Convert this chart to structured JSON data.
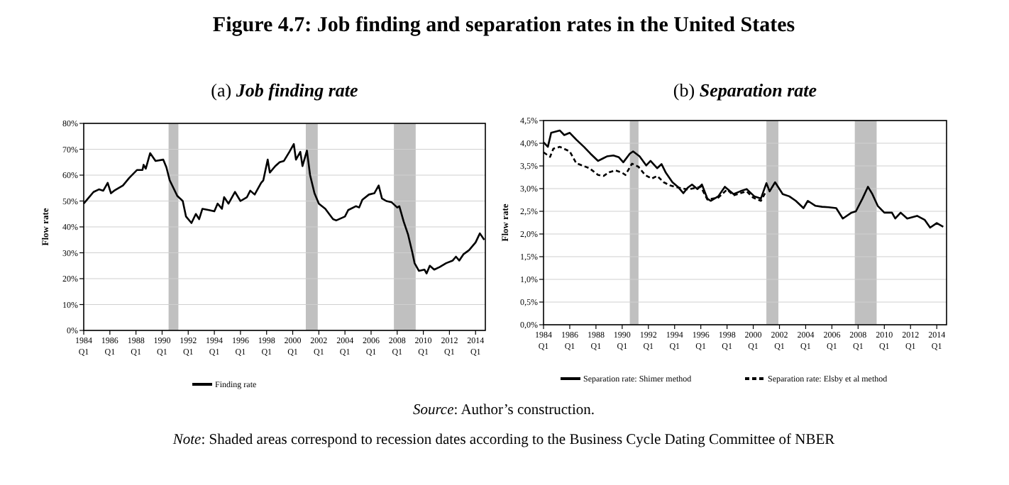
{
  "chart_data": [
    {
      "type": "line",
      "title": "(a) Job finding rate",
      "ylabel": "Flow rate",
      "xlim": [
        "1984-01",
        "2014-10"
      ],
      "ylim": [
        0,
        80
      ],
      "xticks": [
        {
          "value": "1984-01",
          "label": "1984 Q1"
        },
        {
          "value": "1986-01",
          "label": "1986 Q1"
        },
        {
          "value": "1988-01",
          "label": "1988 Q1"
        },
        {
          "value": "1990-01",
          "label": "1990 Q1"
        },
        {
          "value": "1992-01",
          "label": "1992 Q1"
        },
        {
          "value": "1994-01",
          "label": "1994 Q1"
        },
        {
          "value": "1996-01",
          "label": "1996 Q1"
        },
        {
          "value": "1998-01",
          "label": "1998 Q1"
        },
        {
          "value": "2000-01",
          "label": "2000 Q1"
        },
        {
          "value": "2002-01",
          "label": "2002 Q1"
        },
        {
          "value": "2004-01",
          "label": "2004 Q1"
        },
        {
          "value": "2006-01",
          "label": "2006 Q1"
        },
        {
          "value": "2008-01",
          "label": "2008 Q1"
        },
        {
          "value": "2010-01",
          "label": "2010 Q1"
        },
        {
          "value": "2012-01",
          "label": "2012 Q1"
        },
        {
          "value": "2014-01",
          "label": "2014 Q1"
        }
      ],
      "yticks": [
        {
          "value": 0,
          "label": "0%"
        },
        {
          "value": 10,
          "label": "10%"
        },
        {
          "value": 20,
          "label": "20%"
        },
        {
          "value": 30,
          "label": "30%"
        },
        {
          "value": 40,
          "label": "40%"
        },
        {
          "value": 50,
          "label": "50%"
        },
        {
          "value": 60,
          "label": "60%"
        },
        {
          "value": 70,
          "label": "70%"
        },
        {
          "value": 80,
          "label": "80%"
        }
      ],
      "grid": "y",
      "legend": "bottom",
      "bands": [
        {
          "axis": "x",
          "from": "1990-07",
          "to": "1991-04",
          "color": "#c0c0c0"
        },
        {
          "axis": "x",
          "from": "2001-01",
          "to": "2001-12",
          "color": "#c0c0c0"
        },
        {
          "axis": "x",
          "from": "2007-10",
          "to": "2009-06",
          "color": "#c0c0c0"
        }
      ],
      "series": [
        {
          "name": "Finding rate",
          "color": "#000000",
          "line_style": "solid",
          "x": [
            "1984-01",
            "1984-05",
            "1984-10",
            "1985-03",
            "1985-07",
            "1985-11",
            "1986-02",
            "1986-05",
            "1987-01",
            "1987-07",
            "1988-02",
            "1988-07",
            "1988-08",
            "1988-10",
            "1989-02",
            "1989-07",
            "1990-02",
            "1990-05",
            "1990-08",
            "1991-03",
            "1991-08",
            "1991-11",
            "1992-04",
            "1992-08",
            "1992-11",
            "1993-02",
            "1993-08",
            "1994-01",
            "1994-04",
            "1994-08",
            "1994-10",
            "1995-02",
            "1995-08",
            "1996-01",
            "1996-07",
            "1996-10",
            "1997-02",
            "1997-08",
            "1997-10",
            "1998-02",
            "1998-04",
            "1998-09",
            "1999-01",
            "1999-05",
            "1999-10",
            "2000-02",
            "2000-04",
            "2000-08",
            "2000-10",
            "2001-02",
            "2001-05",
            "2001-09",
            "2002-01",
            "2002-07",
            "2003-02",
            "2003-05",
            "2004-01",
            "2004-04",
            "2004-11",
            "2005-02",
            "2005-05",
            "2005-11",
            "2006-04",
            "2006-08",
            "2006-11",
            "2007-03",
            "2007-08",
            "2008-01",
            "2008-03",
            "2008-07",
            "2008-11",
            "2009-03",
            "2009-05",
            "2009-09",
            "2010-02",
            "2010-04",
            "2010-07",
            "2010-11",
            "2011-04",
            "2011-10",
            "2012-04",
            "2012-07",
            "2012-10",
            "2013-02",
            "2013-07",
            "2014-01",
            "2014-05",
            "2014-09"
          ],
          "values": [
            49,
            51,
            53.5,
            54.5,
            54,
            57,
            53,
            54,
            56,
            59,
            62,
            62,
            64,
            62.5,
            68.5,
            65.5,
            66,
            63,
            58,
            52,
            50,
            44,
            41.5,
            45,
            43,
            47,
            46.5,
            46,
            49,
            47,
            51.5,
            49,
            53.5,
            50,
            51.5,
            54,
            52.5,
            57,
            58,
            66,
            61,
            63.5,
            65,
            65.5,
            69,
            72,
            66,
            69,
            63.5,
            69.5,
            60,
            53,
            49,
            47,
            43,
            42.5,
            44,
            46.5,
            48,
            47.5,
            50.5,
            52.5,
            53,
            56,
            51,
            50,
            49.5,
            47.5,
            48,
            42,
            37,
            30,
            26,
            23,
            23.5,
            22,
            25,
            23.5,
            24.5,
            26,
            27,
            28.5,
            27,
            29.5,
            31,
            34,
            37.5,
            35
          ]
        }
      ]
    },
    {
      "type": "line",
      "title": "(b) Separation rate",
      "ylabel": "Flow rate",
      "xlim": [
        "1984-01",
        "2014-10"
      ],
      "ylim": [
        0,
        4.5
      ],
      "xticks": [
        {
          "value": "1984-01",
          "label": "1984 Q1"
        },
        {
          "value": "1986-01",
          "label": "1986 Q1"
        },
        {
          "value": "1988-01",
          "label": "1988 Q1"
        },
        {
          "value": "1990-01",
          "label": "1990 Q1"
        },
        {
          "value": "1992-01",
          "label": "1992 Q1"
        },
        {
          "value": "1994-01",
          "label": "1994 Q1"
        },
        {
          "value": "1996-01",
          "label": "1996 Q1"
        },
        {
          "value": "1998-01",
          "label": "1998 Q1"
        },
        {
          "value": "2000-01",
          "label": "2000 Q1"
        },
        {
          "value": "2002-01",
          "label": "2002 Q1"
        },
        {
          "value": "2004-01",
          "label": "2004 Q1"
        },
        {
          "value": "2006-01",
          "label": "2006 Q1"
        },
        {
          "value": "2008-01",
          "label": "2008 Q1"
        },
        {
          "value": "2010-01",
          "label": "2010 Q1"
        },
        {
          "value": "2012-01",
          "label": "2012 Q1"
        },
        {
          "value": "2014-01",
          "label": "2014 Q1"
        }
      ],
      "yticks": [
        {
          "value": 0,
          "label": "0,0%"
        },
        {
          "value": 0.5,
          "label": "0,5%"
        },
        {
          "value": 1,
          "label": "1,0%"
        },
        {
          "value": 1.5,
          "label": "1,5%"
        },
        {
          "value": 2,
          "label": "2,0%"
        },
        {
          "value": 2.5,
          "label": "2,5%"
        },
        {
          "value": 3,
          "label": "3,0%"
        },
        {
          "value": 3.5,
          "label": "3,5%"
        },
        {
          "value": 4,
          "label": "4,0%"
        },
        {
          "value": 4.5,
          "label": "4,5%"
        }
      ],
      "grid": "y",
      "legend": "bottom",
      "bands": [
        {
          "axis": "x",
          "from": "1990-08",
          "to": "1991-04",
          "color": "#c0c0c0"
        },
        {
          "axis": "x",
          "from": "2001-01",
          "to": "2001-12",
          "color": "#c0c0c0"
        },
        {
          "axis": "x",
          "from": "2007-10",
          "to": "2009-06",
          "color": "#c0c0c0"
        }
      ],
      "series": [
        {
          "name": "Separation rate: Shimer method",
          "color": "#000000",
          "line_style": "solid",
          "x": [
            "1984-01",
            "1984-05",
            "1984-08",
            "1985-04",
            "1985-08",
            "1986-01",
            "1986-07",
            "1987-02",
            "1987-08",
            "1988-03",
            "1988-07",
            "1988-11",
            "1989-05",
            "1989-10",
            "1990-02",
            "1990-08",
            "1990-11",
            "1991-05",
            "1991-11",
            "1992-03",
            "1992-09",
            "1993-01",
            "1993-05",
            "1993-11",
            "1994-04",
            "1994-09",
            "1995-01",
            "1995-05",
            "1995-10",
            "1996-02",
            "1996-07",
            "1996-10",
            "1997-05",
            "1997-11",
            "1998-07",
            "1999-01",
            "1999-07",
            "2000-02",
            "2000-08",
            "2001-01",
            "2001-04",
            "2001-09",
            "2002-04",
            "2002-10",
            "2003-04",
            "2003-11",
            "2004-03",
            "2004-10",
            "2005-04",
            "2005-10",
            "2006-05",
            "2006-11",
            "2007-07",
            "2007-11",
            "2008-05",
            "2008-10",
            "2009-02",
            "2009-07",
            "2010-01",
            "2010-08",
            "2010-11",
            "2011-04",
            "2011-10",
            "2012-07",
            "2013-02",
            "2013-07",
            "2014-01",
            "2014-07"
          ],
          "values": [
            4.02,
            3.92,
            4.23,
            4.28,
            4.18,
            4.23,
            4.08,
            3.92,
            3.77,
            3.61,
            3.66,
            3.71,
            3.73,
            3.69,
            3.58,
            3.77,
            3.82,
            3.71,
            3.51,
            3.61,
            3.45,
            3.54,
            3.35,
            3.14,
            3.04,
            2.9,
            3.02,
            3.09,
            2.99,
            3.09,
            2.78,
            2.73,
            2.83,
            3.04,
            2.88,
            2.94,
            2.99,
            2.83,
            2.78,
            3.12,
            2.94,
            3.14,
            2.88,
            2.83,
            2.73,
            2.57,
            2.73,
            2.62,
            2.6,
            2.59,
            2.57,
            2.34,
            2.47,
            2.5,
            2.78,
            3.04,
            2.88,
            2.62,
            2.47,
            2.47,
            2.34,
            2.47,
            2.34,
            2.4,
            2.31,
            2.14,
            2.24,
            2.16
          ]
        },
        {
          "name": "Separation rate: Elsby et al method",
          "color": "#000000",
          "line_style": "dashed",
          "x": [
            "1984-01",
            "1984-07",
            "1984-10",
            "1985-04",
            "1986-01",
            "1986-07",
            "1987-07",
            "1988-03",
            "1988-08",
            "1989-01",
            "1989-07",
            "1990-01",
            "1990-04",
            "1990-10",
            "1991-04",
            "1991-10",
            "1992-04",
            "1992-09",
            "1993-03",
            "1993-09",
            "1994-01",
            "1995-01",
            "1996-01",
            "1996-07",
            "1997-05",
            "1998-01",
            "1998-07",
            "1999-07",
            "2000-01",
            "2000-08",
            "2001-01"
          ],
          "values": [
            3.8,
            3.7,
            3.88,
            3.92,
            3.82,
            3.56,
            3.45,
            3.3,
            3.28,
            3.36,
            3.4,
            3.35,
            3.3,
            3.55,
            3.48,
            3.3,
            3.22,
            3.28,
            3.14,
            3.07,
            3.04,
            2.98,
            3.04,
            2.76,
            2.8,
            2.98,
            2.85,
            2.94,
            2.8,
            2.73,
            2.95
          ]
        }
      ]
    },
    {
      "type": "other",
      "title": "Figure 4.7: Job finding and separation rates in the United States",
      "annotations": [
        "Source: Author’s construction.",
        "Note: Shaded areas correspond to recession dates according to the Business Cycle Dating Committee of NBER"
      ]
    }
  ]
}
